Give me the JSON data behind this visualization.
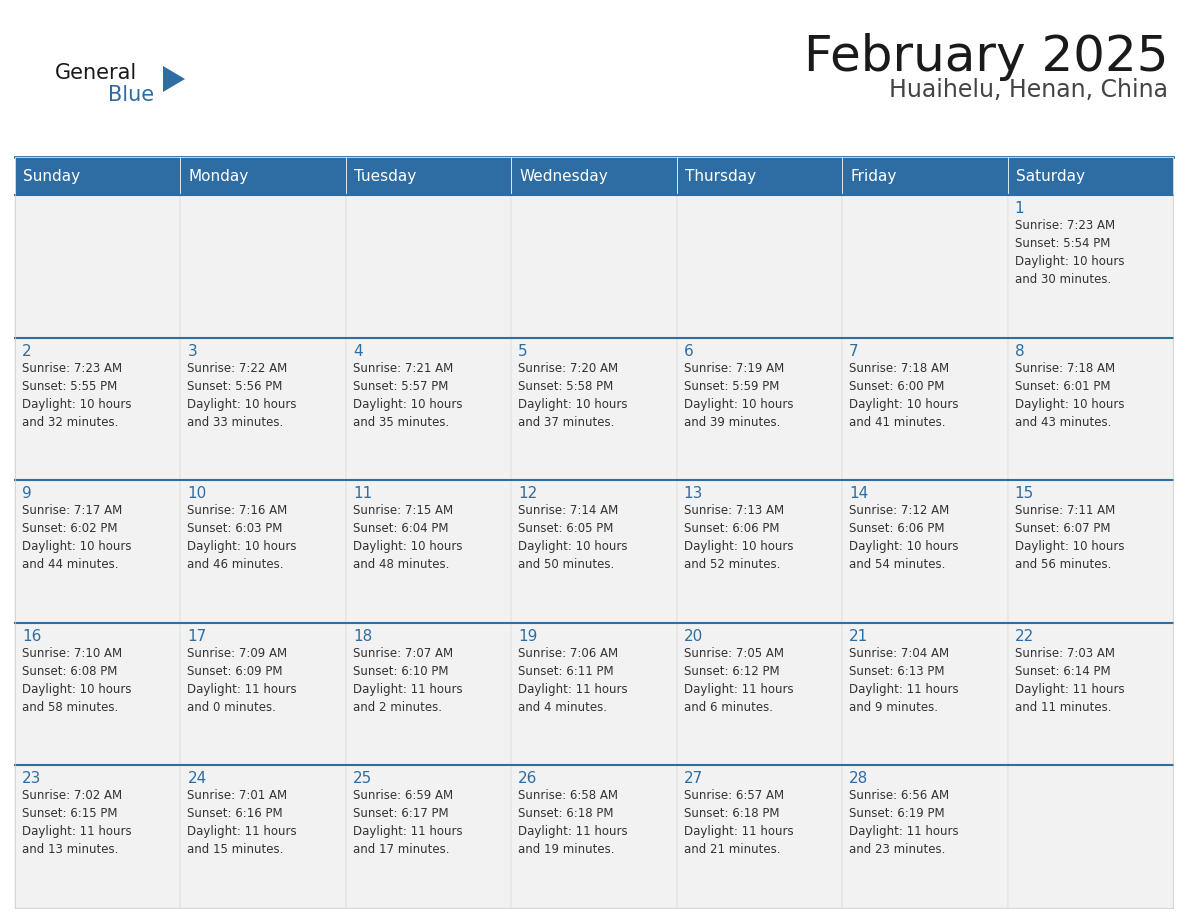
{
  "title": "February 2025",
  "subtitle": "Huaihelu, Henan, China",
  "header_bg": "#2E6DA4",
  "header_text": "#FFFFFF",
  "cell_bg": "#F2F2F2",
  "cell_border_color": "#2E6DA4",
  "cell_outer_border": "#CCCCCC",
  "day_number_color": "#2E6DA4",
  "info_text_color": "#333333",
  "weekdays": [
    "Sunday",
    "Monday",
    "Tuesday",
    "Wednesday",
    "Thursday",
    "Friday",
    "Saturday"
  ],
  "calendar": [
    [
      {
        "day": null,
        "info": ""
      },
      {
        "day": null,
        "info": ""
      },
      {
        "day": null,
        "info": ""
      },
      {
        "day": null,
        "info": ""
      },
      {
        "day": null,
        "info": ""
      },
      {
        "day": null,
        "info": ""
      },
      {
        "day": 1,
        "info": "Sunrise: 7:23 AM\nSunset: 5:54 PM\nDaylight: 10 hours\nand 30 minutes."
      }
    ],
    [
      {
        "day": 2,
        "info": "Sunrise: 7:23 AM\nSunset: 5:55 PM\nDaylight: 10 hours\nand 32 minutes."
      },
      {
        "day": 3,
        "info": "Sunrise: 7:22 AM\nSunset: 5:56 PM\nDaylight: 10 hours\nand 33 minutes."
      },
      {
        "day": 4,
        "info": "Sunrise: 7:21 AM\nSunset: 5:57 PM\nDaylight: 10 hours\nand 35 minutes."
      },
      {
        "day": 5,
        "info": "Sunrise: 7:20 AM\nSunset: 5:58 PM\nDaylight: 10 hours\nand 37 minutes."
      },
      {
        "day": 6,
        "info": "Sunrise: 7:19 AM\nSunset: 5:59 PM\nDaylight: 10 hours\nand 39 minutes."
      },
      {
        "day": 7,
        "info": "Sunrise: 7:18 AM\nSunset: 6:00 PM\nDaylight: 10 hours\nand 41 minutes."
      },
      {
        "day": 8,
        "info": "Sunrise: 7:18 AM\nSunset: 6:01 PM\nDaylight: 10 hours\nand 43 minutes."
      }
    ],
    [
      {
        "day": 9,
        "info": "Sunrise: 7:17 AM\nSunset: 6:02 PM\nDaylight: 10 hours\nand 44 minutes."
      },
      {
        "day": 10,
        "info": "Sunrise: 7:16 AM\nSunset: 6:03 PM\nDaylight: 10 hours\nand 46 minutes."
      },
      {
        "day": 11,
        "info": "Sunrise: 7:15 AM\nSunset: 6:04 PM\nDaylight: 10 hours\nand 48 minutes."
      },
      {
        "day": 12,
        "info": "Sunrise: 7:14 AM\nSunset: 6:05 PM\nDaylight: 10 hours\nand 50 minutes."
      },
      {
        "day": 13,
        "info": "Sunrise: 7:13 AM\nSunset: 6:06 PM\nDaylight: 10 hours\nand 52 minutes."
      },
      {
        "day": 14,
        "info": "Sunrise: 7:12 AM\nSunset: 6:06 PM\nDaylight: 10 hours\nand 54 minutes."
      },
      {
        "day": 15,
        "info": "Sunrise: 7:11 AM\nSunset: 6:07 PM\nDaylight: 10 hours\nand 56 minutes."
      }
    ],
    [
      {
        "day": 16,
        "info": "Sunrise: 7:10 AM\nSunset: 6:08 PM\nDaylight: 10 hours\nand 58 minutes."
      },
      {
        "day": 17,
        "info": "Sunrise: 7:09 AM\nSunset: 6:09 PM\nDaylight: 11 hours\nand 0 minutes."
      },
      {
        "day": 18,
        "info": "Sunrise: 7:07 AM\nSunset: 6:10 PM\nDaylight: 11 hours\nand 2 minutes."
      },
      {
        "day": 19,
        "info": "Sunrise: 7:06 AM\nSunset: 6:11 PM\nDaylight: 11 hours\nand 4 minutes."
      },
      {
        "day": 20,
        "info": "Sunrise: 7:05 AM\nSunset: 6:12 PM\nDaylight: 11 hours\nand 6 minutes."
      },
      {
        "day": 21,
        "info": "Sunrise: 7:04 AM\nSunset: 6:13 PM\nDaylight: 11 hours\nand 9 minutes."
      },
      {
        "day": 22,
        "info": "Sunrise: 7:03 AM\nSunset: 6:14 PM\nDaylight: 11 hours\nand 11 minutes."
      }
    ],
    [
      {
        "day": 23,
        "info": "Sunrise: 7:02 AM\nSunset: 6:15 PM\nDaylight: 11 hours\nand 13 minutes."
      },
      {
        "day": 24,
        "info": "Sunrise: 7:01 AM\nSunset: 6:16 PM\nDaylight: 11 hours\nand 15 minutes."
      },
      {
        "day": 25,
        "info": "Sunrise: 6:59 AM\nSunset: 6:17 PM\nDaylight: 11 hours\nand 17 minutes."
      },
      {
        "day": 26,
        "info": "Sunrise: 6:58 AM\nSunset: 6:18 PM\nDaylight: 11 hours\nand 19 minutes."
      },
      {
        "day": 27,
        "info": "Sunrise: 6:57 AM\nSunset: 6:18 PM\nDaylight: 11 hours\nand 21 minutes."
      },
      {
        "day": 28,
        "info": "Sunrise: 6:56 AM\nSunset: 6:19 PM\nDaylight: 11 hours\nand 23 minutes."
      },
      {
        "day": null,
        "info": ""
      }
    ]
  ],
  "logo_text_general": "General",
  "logo_text_blue": "Blue",
  "logo_color_general": "#1a1a1a",
  "logo_color_blue": "#2E6DA4",
  "logo_triangle_color": "#2E6DA4",
  "title_color": "#1a1a1a",
  "subtitle_color": "#444444",
  "title_fontsize": 36,
  "subtitle_fontsize": 17,
  "weekday_fontsize": 11,
  "day_number_fontsize": 11,
  "info_fontsize": 8.5,
  "logo_fontsize": 15
}
